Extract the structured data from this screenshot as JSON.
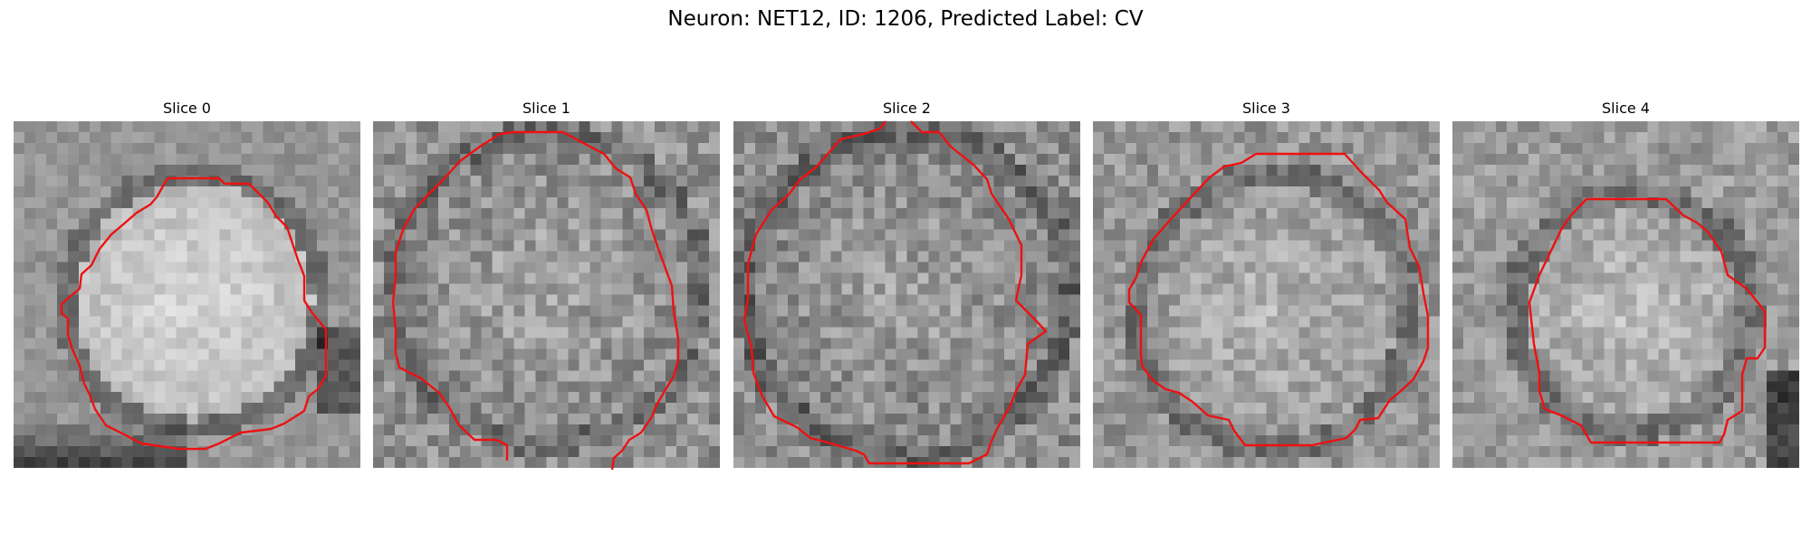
{
  "figure": {
    "title": "Neuron: NET12, ID: 1206, Predicted Label: CV",
    "contour_color": "#ee1111"
  },
  "panels": [
    {
      "title": "Slice 0"
    },
    {
      "title": "Slice 1"
    },
    {
      "title": "Slice 2"
    },
    {
      "title": "Slice 3"
    },
    {
      "title": "Slice 4"
    }
  ]
}
